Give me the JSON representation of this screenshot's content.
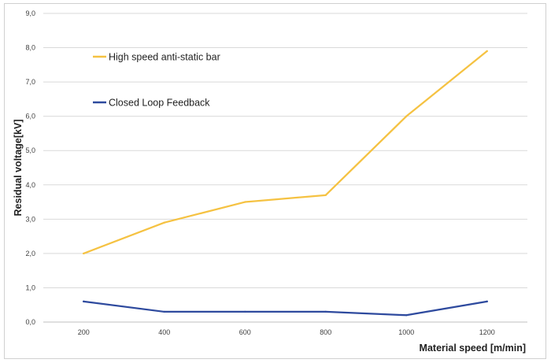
{
  "chart_data": {
    "type": "line",
    "title": "",
    "xlabel": "Material speed [m/min]",
    "ylabel": "Residual voltage[kV]",
    "categories": [
      "200",
      "400",
      "600",
      "800",
      "1000",
      "1200"
    ],
    "ylim": [
      0,
      9
    ],
    "yticks": [
      "0,0",
      "1,0",
      "2,0",
      "3,0",
      "4,0",
      "5,0",
      "6,0",
      "7,0",
      "8,0",
      "9,0"
    ],
    "grid": true,
    "legend_position": "top-left",
    "series": [
      {
        "name": "High speed anti-static bar",
        "color": "#f5c242",
        "values": [
          2.0,
          2.9,
          3.5,
          3.7,
          6.0,
          7.9
        ]
      },
      {
        "name": "Closed Loop Feedback",
        "color": "#2e4a9e",
        "values": [
          0.6,
          0.3,
          0.3,
          0.3,
          0.2,
          0.6
        ]
      }
    ]
  }
}
